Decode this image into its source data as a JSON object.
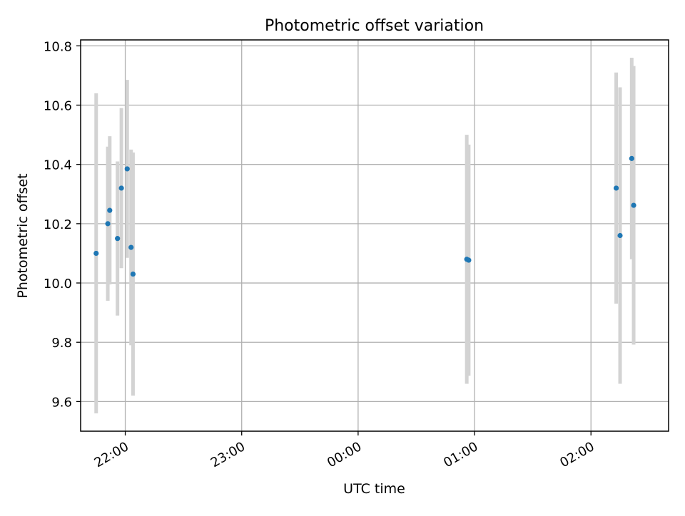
{
  "chart_data": {
    "type": "scatter",
    "title": "Photometric offset variation",
    "xlabel": "UTC time",
    "ylabel": "Photometric offset",
    "x_axis_kind": "time",
    "x_ticks": [
      "22:00",
      "23:00",
      "00:00",
      "01:00",
      "02:00"
    ],
    "y_ticks": [
      "9.6",
      "9.8",
      "10.0",
      "10.2",
      "10.4",
      "10.6",
      "10.8"
    ],
    "xlim": [
      "21:37",
      "02:40"
    ],
    "ylim": [
      9.5,
      10.82
    ],
    "grid": true,
    "legend": "none",
    "colors": {
      "points": "#1f77b4",
      "errorbars": "#d3d3d3",
      "grid": "#b0b0b0"
    },
    "points": [
      {
        "x": "21:45",
        "y": 10.1,
        "yerr": 0.54
      },
      {
        "x": "21:51",
        "y": 10.2,
        "yerr": 0.26
      },
      {
        "x": "21:52",
        "y": 10.245,
        "yerr": 0.25
      },
      {
        "x": "21:56",
        "y": 10.15,
        "yerr": 0.26
      },
      {
        "x": "21:58",
        "y": 10.32,
        "yerr": 0.27
      },
      {
        "x": "22:01",
        "y": 10.385,
        "yerr": 0.3
      },
      {
        "x": "22:03",
        "y": 10.12,
        "yerr": 0.33
      },
      {
        "x": "22:04",
        "y": 10.03,
        "yerr": 0.41
      },
      {
        "x": "00:56",
        "y": 10.08,
        "yerr": 0.42
      },
      {
        "x": "00:57",
        "y": 10.077,
        "yerr": 0.39
      },
      {
        "x": "02:13",
        "y": 10.32,
        "yerr": 0.39
      },
      {
        "x": "02:15",
        "y": 10.16,
        "yerr": 0.5
      },
      {
        "x": "02:21",
        "y": 10.42,
        "yerr": 0.34
      },
      {
        "x": "02:22",
        "y": 10.262,
        "yerr": 0.47
      }
    ]
  }
}
